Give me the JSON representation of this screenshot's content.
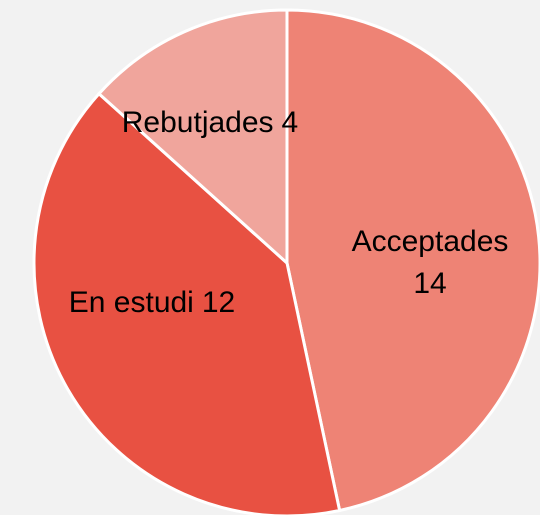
{
  "chart_data": {
    "type": "pie",
    "categories": [
      "Acceptades",
      "En estudi",
      "Rebutjades"
    ],
    "values": [
      14,
      12,
      4
    ],
    "colors": [
      "#ee8375",
      "#e85142",
      "#f0a59c"
    ]
  }
}
